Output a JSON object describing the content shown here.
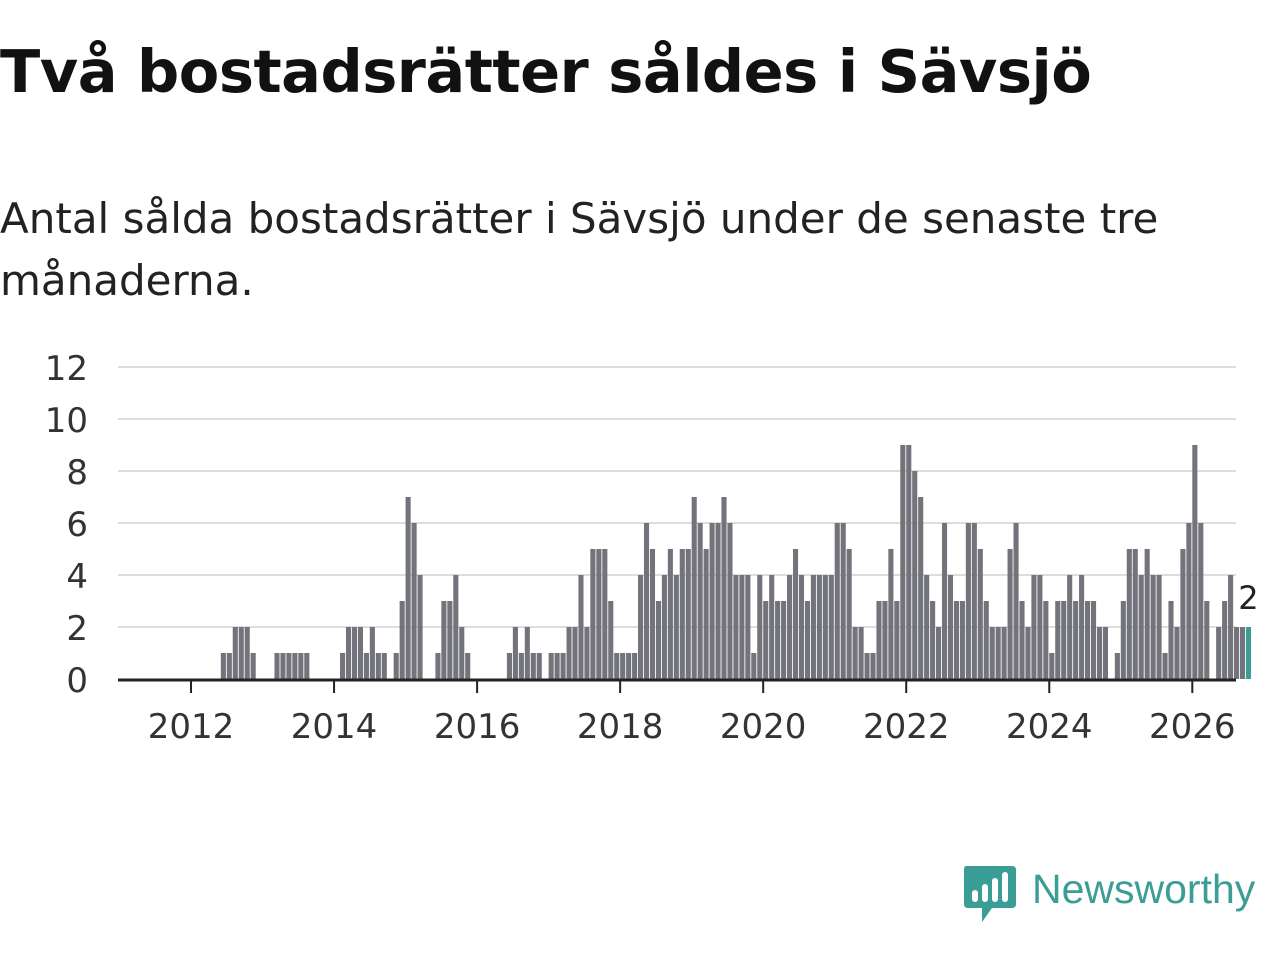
{
  "title": "Två bostadsrätter såldes i Sävsjö",
  "subtitle": "Antal sålda bostadsrätter i Sävsjö under de senaste tre månaderna.",
  "logo": {
    "name": "Newsworthy",
    "icon": "newsworthy-logo-icon",
    "color": "#3a9d96"
  },
  "chart_data": {
    "type": "bar",
    "title": "Två bostadsrätter såldes i Sävsjö",
    "subtitle": "Antal sålda bostadsrätter i Sävsjö under de senaste tre månaderna.",
    "xlabel": "",
    "ylabel": "",
    "granularity": "month",
    "start": "2011-01",
    "ylim": [
      0,
      12
    ],
    "yticks": [
      0,
      2,
      4,
      6,
      8,
      10,
      12
    ],
    "yticklabels": [
      "0",
      "2",
      "4",
      "6",
      "8",
      "10",
      "12"
    ],
    "xticks": [
      "2012",
      "2014",
      "2016",
      "2018",
      "2020",
      "2022",
      "2024",
      "2026"
    ],
    "grid": true,
    "bar_color": "#73737c",
    "highlight_color": "#3a9d96",
    "highlight_last": true,
    "annotation": {
      "text": "2",
      "target": "last"
    },
    "values": [
      0,
      0,
      0,
      0,
      0,
      0,
      0,
      0,
      0,
      0,
      0,
      0,
      0,
      0,
      0,
      0,
      0,
      1,
      1,
      2,
      2,
      2,
      1,
      0,
      0,
      0,
      1,
      1,
      1,
      1,
      1,
      1,
      0,
      0,
      0,
      0,
      0,
      1,
      2,
      2,
      2,
      1,
      2,
      1,
      1,
      0,
      1,
      3,
      7,
      6,
      4,
      0,
      0,
      1,
      3,
      3,
      4,
      2,
      1,
      0,
      0,
      0,
      0,
      0,
      0,
      1,
      2,
      1,
      2,
      1,
      1,
      0,
      1,
      1,
      1,
      2,
      2,
      4,
      2,
      5,
      5,
      5,
      3,
      1,
      1,
      1,
      1,
      4,
      6,
      5,
      3,
      4,
      5,
      4,
      5,
      5,
      7,
      6,
      5,
      6,
      6,
      7,
      6,
      4,
      4,
      4,
      1,
      4,
      3,
      4,
      3,
      3,
      4,
      5,
      4,
      3,
      4,
      4,
      4,
      4,
      6,
      6,
      5,
      2,
      2,
      1,
      1,
      3,
      3,
      5,
      3,
      9,
      9,
      8,
      7,
      4,
      3,
      2,
      6,
      4,
      3,
      3,
      6,
      6,
      5,
      3,
      2,
      2,
      2,
      5,
      6,
      3,
      2,
      4,
      4,
      3,
      1,
      3,
      3,
      4,
      3,
      4,
      3,
      3,
      2,
      2,
      0,
      1,
      3,
      5,
      5,
      4,
      5,
      4,
      4,
      1,
      3,
      2,
      5,
      6,
      9,
      6,
      3,
      0,
      2,
      3,
      4,
      2,
      2,
      2
    ]
  }
}
